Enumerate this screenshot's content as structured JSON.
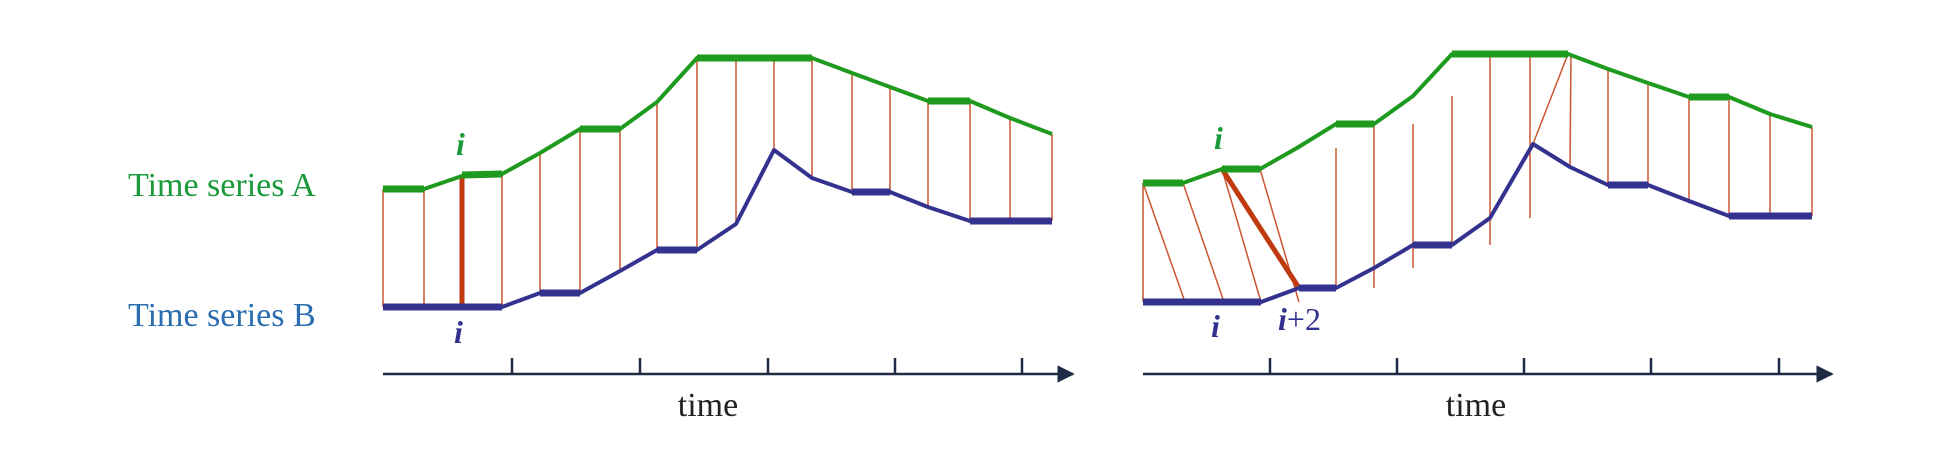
{
  "labels": {
    "series_a": "Time series A",
    "series_b": "Time series B",
    "left_axis_title": "time",
    "right_axis_title": "time",
    "left_index_a": "i",
    "left_index_b": "i",
    "right_index_a": "i",
    "right_index_b_i": "i",
    "right_index_b_i2_italic": "i",
    "right_index_b_i2_suffix": "+2"
  },
  "colors": {
    "series_a": "#1a9a3a",
    "series_b": "#2a6db0",
    "line_a": "#1e9a1e",
    "line_b": "#33338f",
    "alignment": "#cc5533",
    "highlight": "#c03a10",
    "axis": "#1f2a44"
  }
}
